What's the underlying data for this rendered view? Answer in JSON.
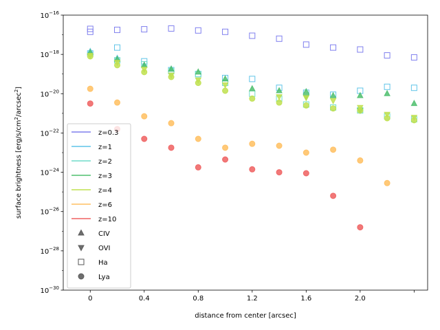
{
  "chart_data": {
    "type": "scatter",
    "title": "",
    "xlabel": "distance from center [arcsec]",
    "ylabel_main": "surface brightness [erg/s/cm",
    "ylabel_sup1": "2",
    "ylabel_mid": "/arcsec",
    "ylabel_sup2": "2",
    "ylabel_end": "]",
    "xlim": [
      -0.2,
      2.5
    ],
    "ylim_log10": [
      -30,
      -16
    ],
    "yscale": "log",
    "x_ticks": [
      {
        "value": 0.0,
        "label": "0"
      },
      {
        "value": 0.4,
        "label": "0.4"
      },
      {
        "value": 0.8,
        "label": "0.8"
      },
      {
        "value": 1.2,
        "label": "1.2"
      },
      {
        "value": 1.6,
        "label": "1.6"
      },
      {
        "value": 2.0,
        "label": "2.0"
      },
      {
        "value": 2.4,
        "label": ""
      }
    ],
    "y_ticks": [
      {
        "exp": -30,
        "base": "10",
        "sup": "−30"
      },
      {
        "exp": -28,
        "base": "10",
        "sup": "−28"
      },
      {
        "exp": -26,
        "base": "10",
        "sup": "−26"
      },
      {
        "exp": -24,
        "base": "10",
        "sup": "−24"
      },
      {
        "exp": -22,
        "base": "10",
        "sup": "−22"
      },
      {
        "exp": -20,
        "base": "10",
        "sup": "−20"
      },
      {
        "exp": -18,
        "base": "10",
        "sup": "−18"
      },
      {
        "exp": -16,
        "base": "10",
        "sup": "−16"
      }
    ],
    "legend_position": "center-left",
    "legend_redshifts": [
      {
        "label": "z=0.3",
        "color": "#7f7fee"
      },
      {
        "label": "z=1",
        "color": "#5fc4e8"
      },
      {
        "label": "z=2",
        "color": "#6fdcc8"
      },
      {
        "label": "z=3",
        "color": "#4fbf6f"
      },
      {
        "label": "z=4",
        "color": "#bfe04f"
      },
      {
        "label": "z=6",
        "color": "#ffbf60"
      },
      {
        "label": "z=10",
        "color": "#ef6060"
      }
    ],
    "legend_lines": [
      {
        "label": "CIV",
        "marker": "triangle-up"
      },
      {
        "label": "OVI",
        "marker": "triangle-down"
      },
      {
        "label": "Ha",
        "marker": "square"
      },
      {
        "label": "Lya",
        "marker": "circle"
      }
    ],
    "series": [
      {
        "name": "z=0.3 Ha",
        "color": "#7f7fee",
        "marker": "square",
        "x": [
          0.0,
          0.0,
          0.2,
          0.4,
          0.6,
          0.8,
          1.0,
          1.2,
          1.4,
          1.6,
          1.8,
          2.0,
          2.2,
          2.4
        ],
        "log10y": [
          -16.7,
          -16.85,
          -16.75,
          -16.72,
          -16.68,
          -16.78,
          -16.85,
          -17.05,
          -17.2,
          -17.5,
          -17.65,
          -17.75,
          -18.05,
          -18.15
        ]
      },
      {
        "name": "z=1 Ha",
        "color": "#5fc4e8",
        "marker": "square",
        "x": [
          0.0,
          0.2,
          0.4,
          0.6,
          0.8,
          1.0,
          1.2,
          1.4,
          1.6,
          1.8,
          2.0,
          2.2,
          2.4
        ],
        "log10y": [
          -17.95,
          -17.65,
          -18.35,
          -18.8,
          -19.0,
          -19.2,
          -19.25,
          -19.7,
          -19.95,
          -20.05,
          -19.85,
          -19.65,
          -19.7
        ]
      },
      {
        "name": "z=1 CIV",
        "color": "#5fc4e8",
        "marker": "triangle-up",
        "x": [
          0.0,
          0.2,
          0.4,
          0.6
        ],
        "log10y": [
          -17.85,
          -18.2,
          -18.55,
          -18.75
        ]
      },
      {
        "name": "z=2 Ha",
        "color": "#6fdcc8",
        "marker": "square",
        "x": [
          0.2,
          0.4,
          0.6,
          0.8,
          1.0,
          1.2,
          1.4,
          1.6,
          1.8,
          2.0,
          2.2,
          2.4
        ],
        "log10y": [
          -18.3,
          -18.5,
          -18.85,
          -19.0,
          -19.45,
          -20.0,
          -20.25,
          -20.55,
          -20.7,
          -20.85,
          -21.15,
          -21.3
        ]
      },
      {
        "name": "z=3 CIV",
        "color": "#4fbf6f",
        "marker": "triangle-up",
        "x": [
          0.0,
          0.2,
          0.4,
          0.6,
          0.8,
          1.0,
          1.2,
          1.4,
          1.6,
          1.8,
          2.0,
          2.2,
          2.4
        ],
        "log10y": [
          -17.9,
          -18.25,
          -18.55,
          -18.75,
          -18.9,
          -19.25,
          -19.75,
          -19.85,
          -19.9,
          -20.1,
          -20.1,
          -20.0,
          -20.5
        ]
      },
      {
        "name": "z=3 OVI",
        "color": "#4fbf6f",
        "marker": "triangle-down",
        "x": [
          1.6,
          2.0
        ],
        "log10y": [
          -20.15,
          -20.85
        ]
      },
      {
        "name": "z=4 Lya",
        "color": "#bfe04f",
        "marker": "circle",
        "x": [
          0.0,
          0.2,
          0.4,
          0.6,
          0.8,
          1.0,
          1.2,
          1.4,
          1.6,
          1.8,
          2.0,
          2.2,
          2.4
        ],
        "log10y": [
          -18.1,
          -18.55,
          -18.9,
          -19.15,
          -19.45,
          -19.85,
          -20.25,
          -20.45,
          -20.6,
          -20.75,
          -20.85,
          -21.25,
          -21.35
        ]
      },
      {
        "name": "z=4 OVI",
        "color": "#bfe04f",
        "marker": "triangle-down",
        "x": [
          0.0,
          0.2,
          0.4,
          0.6,
          0.8,
          1.0,
          1.4,
          1.6,
          1.8,
          2.0,
          2.2,
          2.4
        ],
        "log10y": [
          -18.05,
          -18.4,
          -18.75,
          -19.05,
          -19.3,
          -19.55,
          -20.15,
          -20.2,
          -20.35,
          -20.7,
          -21.05,
          -21.2
        ]
      },
      {
        "name": "z=6 Lya",
        "color": "#ffbf60",
        "marker": "circle",
        "x": [
          0.0,
          0.2,
          0.4,
          0.6,
          0.8,
          1.0,
          1.2,
          1.4,
          1.6,
          1.8,
          2.0,
          2.2
        ],
        "log10y": [
          -19.75,
          -20.45,
          -21.15,
          -21.5,
          -22.3,
          -22.75,
          -22.55,
          -22.65,
          -23.0,
          -22.85,
          -23.4,
          -24.55
        ]
      },
      {
        "name": "z=10 Lya",
        "color": "#ef6060",
        "marker": "circle",
        "x": [
          0.0,
          0.2,
          0.4,
          0.6,
          0.8,
          1.0,
          1.2,
          1.4,
          1.6,
          1.8,
          2.0
        ],
        "log10y": [
          -20.5,
          -21.8,
          -22.3,
          -22.75,
          -23.75,
          -23.35,
          -23.85,
          -24.0,
          -24.05,
          -25.2,
          -26.8
        ]
      }
    ]
  }
}
